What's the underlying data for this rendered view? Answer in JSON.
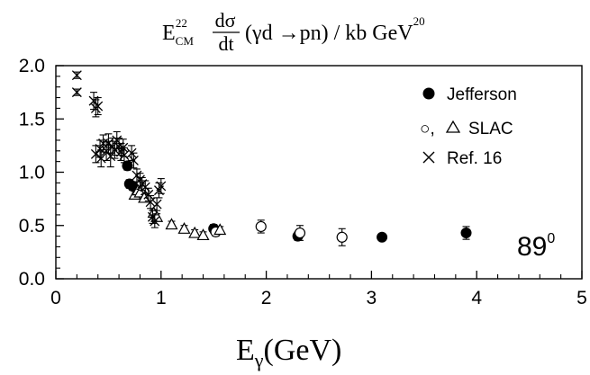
{
  "chart_data": {
    "type": "scatter",
    "title": {
      "base": "E",
      "sup": "22",
      "sub": "CM",
      "frac_num": "dσ",
      "frac_den": "dt",
      "reaction": "(γd →pn) / kb GeV",
      "unit_sup": "20"
    },
    "xlabel": {
      "base": "E",
      "sub": "γ",
      "rest": "(GeV)"
    },
    "ylabel": "",
    "xlim": [
      0,
      5
    ],
    "ylim": [
      0,
      2.0
    ],
    "x_ticks": [
      "0",
      "1",
      "2",
      "3",
      "4",
      "5"
    ],
    "y_ticks": [
      "0.0",
      "0.5",
      "1.0",
      "1.5",
      "2.0"
    ],
    "annotation": {
      "base": "89",
      "sup": "0"
    },
    "legend_position": "top-right",
    "legend": {
      "jefferson": "Jefferson",
      "slac_prefix": "○,",
      "slac": "SLAC",
      "ref16": "Ref. 16"
    },
    "series": [
      {
        "name": "Jefferson",
        "marker": "filled-circle",
        "points": [
          [
            0.68,
            1.06,
            0.04
          ],
          [
            0.7,
            0.89,
            0.04
          ],
          [
            0.73,
            0.87,
            0.04
          ],
          [
            1.5,
            0.47,
            0.04
          ],
          [
            2.3,
            0.4,
            0.04
          ],
          [
            3.1,
            0.39,
            0.03
          ],
          [
            3.9,
            0.43,
            0.06
          ]
        ]
      },
      {
        "name": "SLAC",
        "marker": "open-circle",
        "points": [
          [
            1.52,
            0.44,
            0.04
          ],
          [
            1.95,
            0.49,
            0.06
          ],
          [
            2.32,
            0.43,
            0.07
          ],
          [
            2.72,
            0.39,
            0.08
          ]
        ]
      },
      {
        "name": "SLAC",
        "marker": "open-triangle",
        "points": [
          [
            0.75,
            0.79,
            0.03
          ],
          [
            0.78,
            0.83,
            0.03
          ],
          [
            0.8,
            0.81,
            0.03
          ],
          [
            0.84,
            0.76,
            0.03
          ],
          [
            0.93,
            0.62,
            0.03
          ],
          [
            0.96,
            0.58,
            0.03
          ],
          [
            1.1,
            0.51,
            0.03
          ],
          [
            1.22,
            0.47,
            0.03
          ],
          [
            1.32,
            0.43,
            0.03
          ],
          [
            1.4,
            0.41,
            0.03
          ],
          [
            1.56,
            0.46,
            0.03
          ]
        ]
      },
      {
        "name": "Ref. 16",
        "marker": "cross",
        "points": [
          [
            0.2,
            1.91,
            0.03
          ],
          [
            0.2,
            1.75,
            0.03
          ],
          [
            0.36,
            1.67,
            0.08
          ],
          [
            0.38,
            1.6,
            0.08
          ],
          [
            0.4,
            1.62,
            0.08
          ],
          [
            0.38,
            1.17,
            0.08
          ],
          [
            0.42,
            1.22,
            0.08
          ],
          [
            0.43,
            1.13,
            0.08
          ],
          [
            0.45,
            1.27,
            0.08
          ],
          [
            0.48,
            1.2,
            0.09
          ],
          [
            0.5,
            1.27,
            0.09
          ],
          [
            0.52,
            1.15,
            0.1
          ],
          [
            0.54,
            1.24,
            0.08
          ],
          [
            0.56,
            1.21,
            0.08
          ],
          [
            0.58,
            1.3,
            0.08
          ],
          [
            0.6,
            1.24,
            0.08
          ],
          [
            0.62,
            1.19,
            0.08
          ],
          [
            0.64,
            1.23,
            0.08
          ],
          [
            0.65,
            1.16,
            0.07
          ],
          [
            0.72,
            1.18,
            0.07
          ],
          [
            0.74,
            1.11,
            0.07
          ],
          [
            0.77,
            0.97,
            0.06
          ],
          [
            0.8,
            0.93,
            0.06
          ],
          [
            0.82,
            0.89,
            0.06
          ],
          [
            0.85,
            0.86,
            0.06
          ],
          [
            0.88,
            0.79,
            0.06
          ],
          [
            0.9,
            0.72,
            0.06
          ],
          [
            0.92,
            0.58,
            0.06
          ],
          [
            0.94,
            0.54,
            0.06
          ],
          [
            0.96,
            0.7,
            0.06
          ],
          [
            0.98,
            0.83,
            0.07
          ],
          [
            1.0,
            0.87,
            0.07
          ]
        ]
      }
    ]
  }
}
